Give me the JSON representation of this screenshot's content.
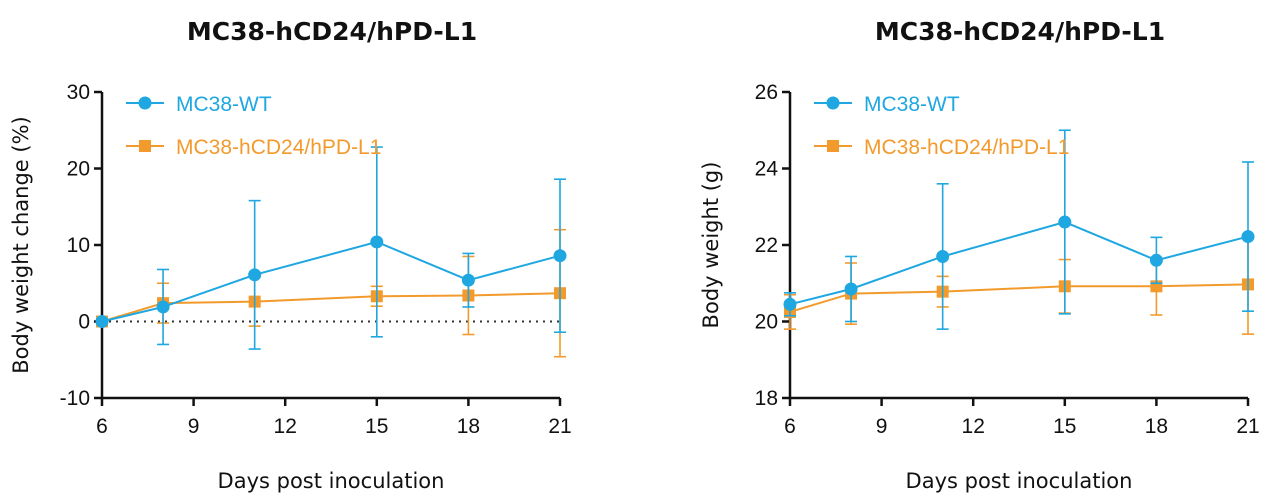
{
  "colors": {
    "wt": "#1ea7e1",
    "hcd24": "#f39a2c",
    "axis": "#111111"
  },
  "chart_data": [
    {
      "type": "line",
      "title": "MC38-hCD24/hPD-L1",
      "xlabel": "Days post inoculation",
      "ylabel": "Body weight change (%)",
      "xlim": [
        6,
        21
      ],
      "ylim": [
        -10,
        30
      ],
      "xticks": [
        "6",
        "9",
        "12",
        "15",
        "18",
        "21"
      ],
      "yticks": [
        "-10",
        "0",
        "10",
        "20",
        "30"
      ],
      "reference_line": {
        "y": 0,
        "style": "dotted"
      },
      "legend": "top-left",
      "series": [
        {
          "name": "MC38-WT",
          "marker": "circle",
          "color": "wt",
          "x": [
            6,
            8,
            11,
            15,
            18,
            21
          ],
          "y": [
            0,
            1.9,
            6.1,
            10.4,
            5.4,
            8.6
          ],
          "err": [
            0,
            4.9,
            9.7,
            12.4,
            3.5,
            10.0
          ]
        },
        {
          "name": "MC38-hCD24/hPD-L1",
          "marker": "square",
          "color": "hcd24",
          "x": [
            6,
            8,
            11,
            15,
            18,
            21
          ],
          "y": [
            0,
            2.4,
            2.6,
            3.3,
            3.4,
            3.7
          ],
          "err": [
            0,
            2.6,
            3.2,
            1.3,
            5.1,
            8.3
          ]
        }
      ]
    },
    {
      "type": "line",
      "title": "MC38-hCD24/hPD-L1",
      "xlabel": "Days post inoculation",
      "ylabel": "Body weight (g)",
      "xlim": [
        6,
        21
      ],
      "ylim": [
        18,
        26
      ],
      "xticks": [
        "6",
        "9",
        "12",
        "15",
        "18",
        "21"
      ],
      "yticks": [
        "18",
        "20",
        "22",
        "24",
        "26"
      ],
      "legend": "top-left",
      "series": [
        {
          "name": "MC38-WT",
          "marker": "circle",
          "color": "wt",
          "x": [
            6,
            8,
            11,
            15,
            18,
            21
          ],
          "y": [
            20.45,
            20.85,
            21.7,
            22.6,
            21.6,
            22.22
          ],
          "err": [
            0.3,
            0.85,
            1.9,
            2.4,
            0.6,
            1.95
          ]
        },
        {
          "name": "MC38-hCD24/hPD-L1",
          "marker": "square",
          "color": "hcd24",
          "x": [
            6,
            8,
            11,
            15,
            18,
            21
          ],
          "y": [
            20.25,
            20.73,
            20.78,
            20.92,
            20.92,
            20.97
          ],
          "err": [
            0.45,
            0.8,
            0.4,
            0.7,
            0.75,
            1.3
          ]
        }
      ]
    }
  ]
}
